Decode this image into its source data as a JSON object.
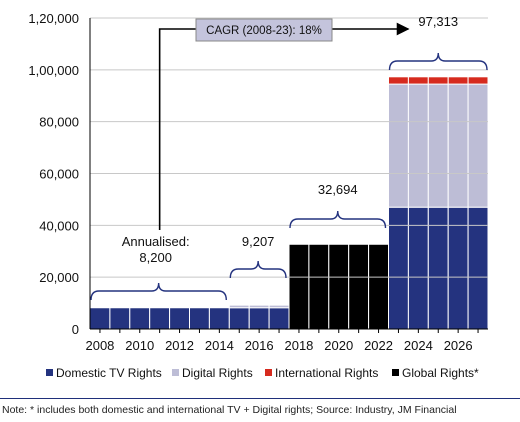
{
  "chart_data": {
    "type": "bar",
    "stacked": true,
    "yaxis": {
      "range": [
        0,
        120000
      ],
      "ticks": [
        0,
        20000,
        40000,
        60000,
        80000,
        100000,
        120000
      ],
      "tick_labels": [
        "0",
        "20,000",
        "40,000",
        "60,000",
        "80,000",
        "1,00,000",
        "1,20,000"
      ]
    },
    "xaxis": {
      "range": [
        2007.5,
        2027.5
      ],
      "ticks": [
        2008,
        2010,
        2012,
        2014,
        2016,
        2018,
        2020,
        2022,
        2024,
        2026
      ],
      "tick_labels": [
        "2008",
        "2010",
        "2012",
        "2014",
        "2016",
        "2018",
        "2020",
        "2022",
        "2024",
        "2026"
      ]
    },
    "grid": "horizontal",
    "legend": "bottom",
    "series": [
      {
        "name": "Domestic TV Rights",
        "color": "#24337f"
      },
      {
        "name": "Digital Rights",
        "color": "#bdbdd6"
      },
      {
        "name": "International Rights",
        "color": "#d62a1e"
      },
      {
        "name": "Global Rights*",
        "color": "#000000"
      }
    ],
    "blocks": [
      {
        "start": 2008,
        "end": 2014,
        "values": {
          "Domestic TV Rights": 8200
        }
      },
      {
        "start": 2015,
        "end": 2017,
        "values": {
          "Domestic TV Rights": 8200,
          "Digital Rights": 1007
        }
      },
      {
        "start": 2018,
        "end": 2022,
        "values": {
          "Global Rights*": 32694
        }
      },
      {
        "start": 2023,
        "end": 2027,
        "values": {
          "Domestic TV Rights": 47000,
          "Digital Rights": 47500,
          "International Rights": 2813
        }
      }
    ],
    "annotations": {
      "period_2008_2014": {
        "line1": "Annualised:",
        "line2": "8,200"
      },
      "period_2015_2017": "9,207",
      "period_2018_2022": "32,694",
      "period_2023_2027": "97,313",
      "cagr": "CAGR (2008-23): 18%"
    }
  },
  "note": "Note: * includes both domestic and international TV + Digital rights; Source: Industry, JM Financial"
}
